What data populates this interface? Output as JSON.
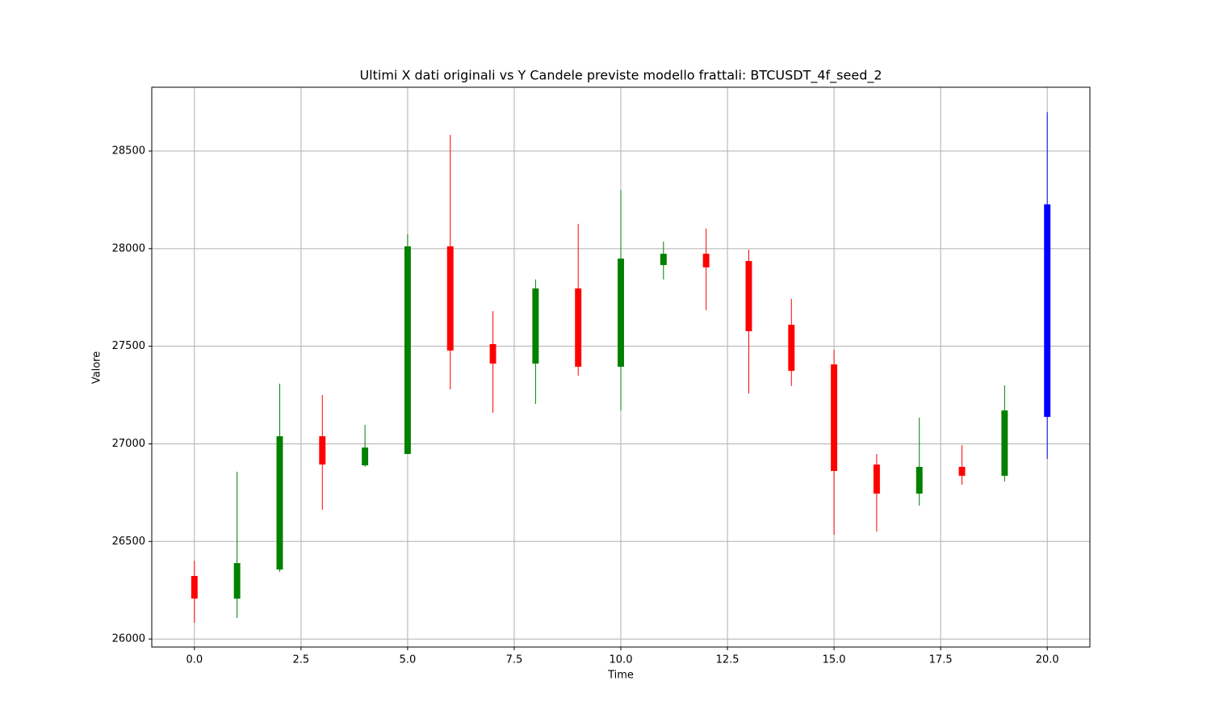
{
  "chart_data": {
    "type": "candlestick",
    "title": "Ultimi X dati originali vs Y Candele previste modello frattali: BTCUSDT_4f_seed_2",
    "x_label": "Time",
    "y_label": "Valore",
    "x": [
      0,
      1,
      2,
      3,
      4,
      5,
      6,
      7,
      8,
      9,
      10,
      11,
      12,
      13,
      14,
      15,
      16,
      17,
      18,
      19,
      20
    ],
    "open": [
      26323,
      26207,
      26356,
      27039,
      26890,
      26948,
      28012,
      27511,
      27411,
      27796,
      27395,
      27916,
      27974,
      27937,
      27610,
      27407,
      26894,
      26745,
      26882,
      26836,
      27138
    ],
    "high": [
      26401,
      26857,
      27308,
      27250,
      27097,
      28074,
      28583,
      27680,
      27842,
      28127,
      28301,
      28036,
      28103,
      27995,
      27743,
      27482,
      26948,
      27134,
      26993,
      27300,
      28699
    ],
    "low": [
      26083,
      26108,
      26344,
      26662,
      26882,
      26948,
      27279,
      27159,
      27204,
      27349,
      27171,
      27842,
      27685,
      27258,
      27296,
      26534,
      26550,
      26683,
      26791,
      26807,
      26923
    ],
    "close": [
      26207,
      26389,
      27039,
      26894,
      26981,
      28012,
      27478,
      27411,
      27796,
      27395,
      27949,
      27974,
      27904,
      27577,
      27374,
      26861,
      26745,
      26882,
      26836,
      27171,
      28227
    ],
    "colors": [
      "red",
      "green",
      "green",
      "red",
      "green",
      "green",
      "red",
      "red",
      "green",
      "red",
      "green",
      "green",
      "red",
      "red",
      "red",
      "red",
      "red",
      "green",
      "red",
      "green",
      "blue"
    ],
    "xlim": [
      -1,
      21
    ],
    "ylim": [
      25959,
      28827
    ],
    "xticks": [
      {
        "value": 0,
        "label": "0.0"
      },
      {
        "value": 2.5,
        "label": "2.5"
      },
      {
        "value": 5,
        "label": "5.0"
      },
      {
        "value": 7.5,
        "label": "7.5"
      },
      {
        "value": 10,
        "label": "10.0"
      },
      {
        "value": 12.5,
        "label": "12.5"
      },
      {
        "value": 15,
        "label": "15.0"
      },
      {
        "value": 17.5,
        "label": "17.5"
      },
      {
        "value": 20,
        "label": "20.0"
      }
    ],
    "yticks": [
      26000,
      26500,
      27000,
      27500,
      28000,
      28500
    ],
    "grid": true
  }
}
